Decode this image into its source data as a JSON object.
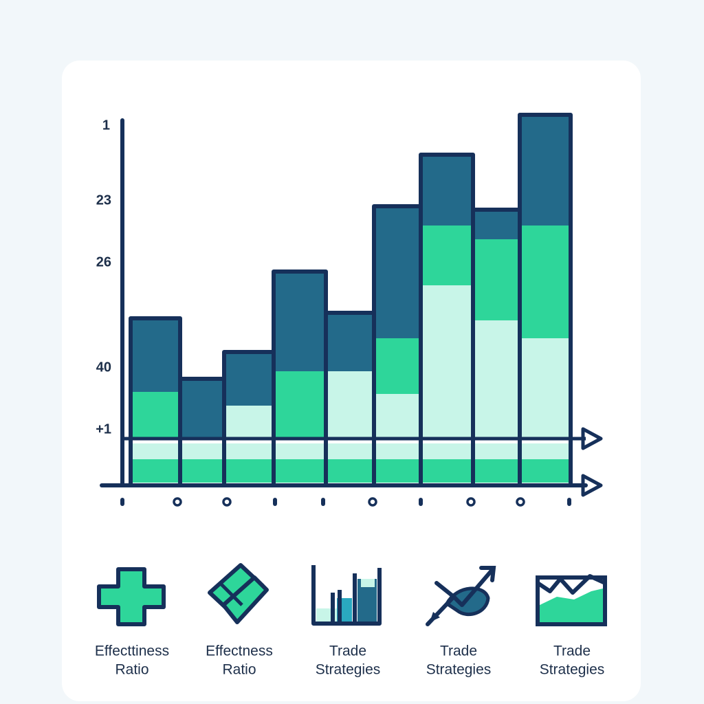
{
  "axis_labels": [
    "1",
    "23",
    "26",
    "40",
    "+1"
  ],
  "icons": [
    {
      "line1": "Effecttiness",
      "line2": "Ratio"
    },
    {
      "line1": "Effectness",
      "line2": "Ratio"
    },
    {
      "line1": "Trade",
      "line2": "Strategies"
    },
    {
      "line1": "Trade",
      "line2": "Strategies"
    },
    {
      "line1": "Trade",
      "line2": "Strategies"
    }
  ]
}
